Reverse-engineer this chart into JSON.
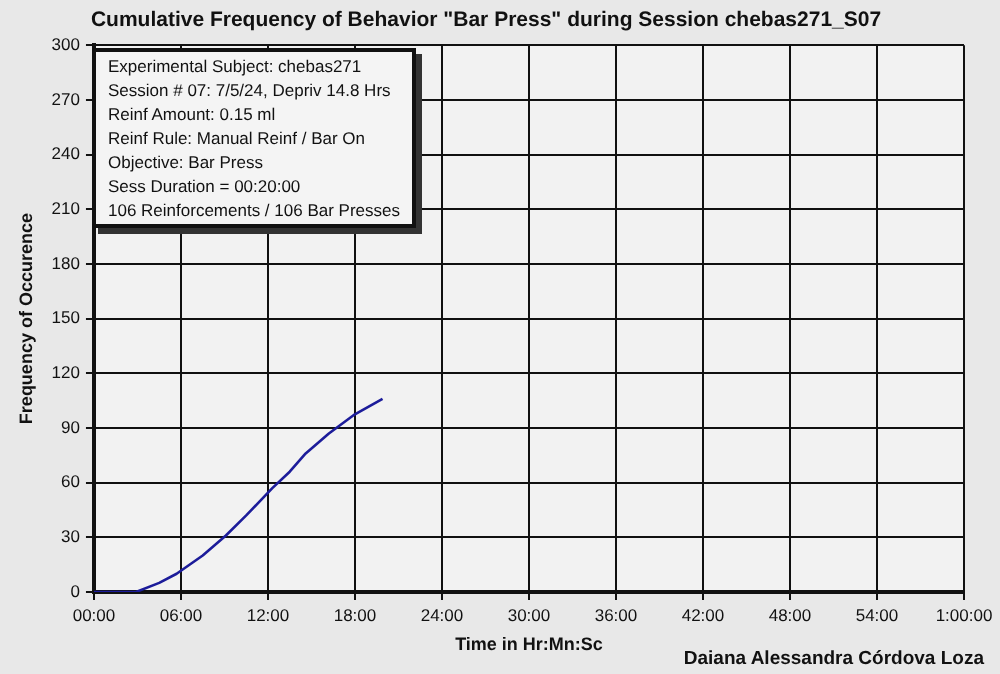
{
  "chart_data": {
    "type": "line",
    "title": "Cumulative Frequency of Behavior \"Bar Press\" during Session chebas271_S07",
    "xlabel": "Time in Hr:Mn:Sc",
    "ylabel": "Frequency of Occurence",
    "x": [
      0,
      2.9,
      4.5,
      5.7,
      7.5,
      9.1,
      10.5,
      12.3,
      13.5,
      14.6,
      16.2,
      17.9,
      19.9
    ],
    "series": [
      {
        "color": "#1c1c9a",
        "values": [
          0,
          0,
          5,
          10,
          20,
          31,
          42,
          57,
          66,
          76,
          87,
          97,
          106
        ]
      }
    ],
    "xlim": [
      0,
      60
    ],
    "xticks": [
      {
        "value": 0,
        "label": "00:00"
      },
      {
        "value": 6,
        "label": "06:00"
      },
      {
        "value": 12,
        "label": "12:00"
      },
      {
        "value": 18,
        "label": "18:00"
      },
      {
        "value": 24,
        "label": "24:00"
      },
      {
        "value": 30,
        "label": "30:00"
      },
      {
        "value": 36,
        "label": "36:00"
      },
      {
        "value": 42,
        "label": "42:00"
      },
      {
        "value": 48,
        "label": "48:00"
      },
      {
        "value": 54,
        "label": "54:00"
      },
      {
        "value": 60,
        "label": "1:00:00"
      }
    ],
    "ylim": [
      0,
      300
    ],
    "yticks": [
      0,
      30,
      60,
      90,
      120,
      150,
      180,
      210,
      240,
      270,
      300
    ],
    "grid": true,
    "marker": "none",
    "line_style": "solid",
    "annotations": [
      "Experimental Subject: chebas271",
      "Session # 07: 7/5/24, Depriv 14.8 Hrs",
      "Reinf Amount: 0.15 ml",
      "Reinf Rule: Manual Reinf / Bar On",
      "Objective: Bar Press",
      "Sess Duration = 00:20:00",
      "106 Reinforcements / 106 Bar Presses",
      "Daiana Alessandra  Córdova Loza"
    ]
  }
}
